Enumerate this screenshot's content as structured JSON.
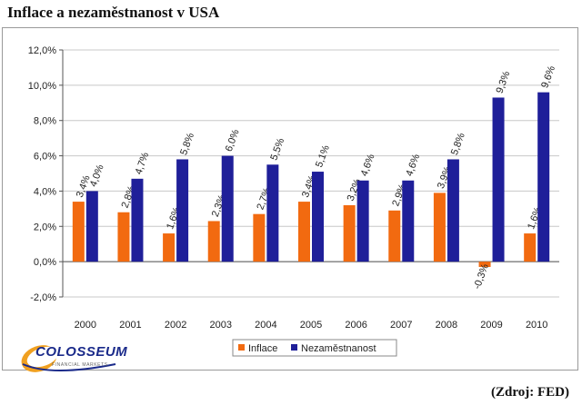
{
  "title": "Inflace a nezaměstnanost v USA",
  "source": "(Zdroj: FED)",
  "logo": {
    "text": "COLOSSEUM",
    "subtext": "FINANCIAL MARKETS"
  },
  "colors": {
    "inflace": "#f26a10",
    "nezamestnanost": "#1f1f99"
  },
  "chart_data": {
    "type": "bar",
    "categories": [
      "2000",
      "2001",
      "2002",
      "2003",
      "2004",
      "2005",
      "2006",
      "2007",
      "2008",
      "2009",
      "2010"
    ],
    "series": [
      {
        "name": "Inflace",
        "values": [
          3.4,
          2.8,
          1.6,
          2.3,
          2.7,
          3.4,
          3.2,
          2.9,
          3.9,
          -0.3,
          1.6
        ],
        "labels": [
          "3,4%",
          "2,8%",
          "1,6%",
          "2,3%",
          "2,7%",
          "3,4%",
          "3,2%",
          "2,9%",
          "3,9%",
          "-0,3%",
          "1,6%"
        ]
      },
      {
        "name": "Nezaměstnanost",
        "values": [
          4.0,
          4.7,
          5.8,
          6.0,
          5.5,
          5.1,
          4.6,
          4.6,
          5.8,
          9.3,
          9.6
        ],
        "labels": [
          "4,0%",
          "4,7%",
          "5,8%",
          "6,0%",
          "5,5%",
          "5,1%",
          "4,6%",
          "4,6%",
          "5,8%",
          "9,3%",
          "9,6%"
        ]
      }
    ],
    "ylim": [
      -2,
      12
    ],
    "yticks": [
      -2,
      0,
      2,
      4,
      6,
      8,
      10,
      12
    ],
    "ytick_labels": [
      "-2,0%",
      "0,0%",
      "2,0%",
      "4,0%",
      "6,0%",
      "8,0%",
      "10,0%",
      "12,0%"
    ],
    "grid": true,
    "legend": "bottom"
  }
}
